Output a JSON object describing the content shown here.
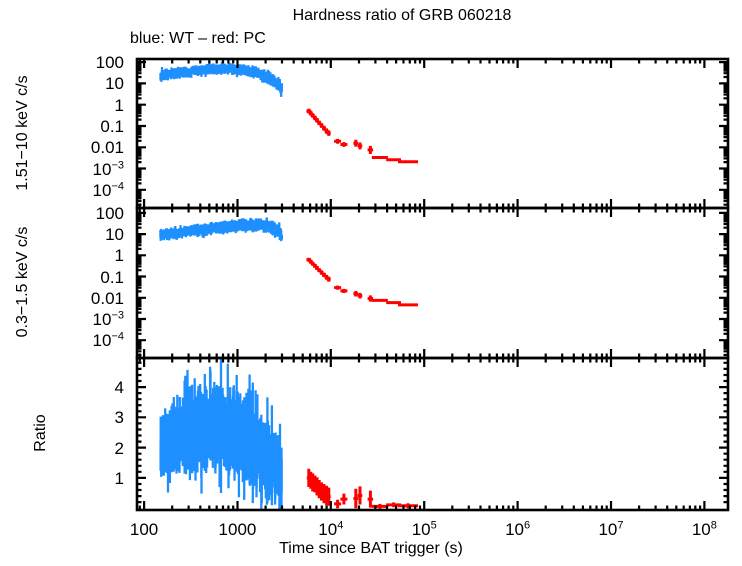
{
  "colors": {
    "wt_blue": "#1E8FFF",
    "pc_red": "#FF0000",
    "axes": "#000000",
    "background": "#FFFFFF"
  },
  "chart_data": {
    "type": "scatter",
    "title": "Hardness ratio of GRB 060218",
    "subtitle": "blue: WT – red: PC",
    "xlabel": "Time since BAT trigger (s)",
    "x_scale": "log",
    "x_range": [
      84,
      179000000
    ],
    "x_ticks": [
      {
        "v": 100,
        "label": "100"
      },
      {
        "v": 1000,
        "label": "1000"
      },
      {
        "v": 10000,
        "label": "10^4"
      },
      {
        "v": 100000,
        "label": "10^5"
      },
      {
        "v": 1000000,
        "label": "10^6"
      },
      {
        "v": 10000000,
        "label": "10^7"
      },
      {
        "v": 100000000,
        "label": "10^8"
      }
    ],
    "legend": [
      {
        "label": "WT",
        "color_key": "wt_blue"
      },
      {
        "label": "PC",
        "color_key": "pc_red"
      }
    ],
    "panels": [
      {
        "name": "hard-band-rate",
        "ylabel": "1.51−10 keV c/s",
        "y_scale": "log",
        "y_range": [
          1.4e-05,
          140
        ],
        "y_ticks": [
          {
            "v": 100,
            "label": "100"
          },
          {
            "v": 10,
            "label": "10"
          },
          {
            "v": 1,
            "label": "1"
          },
          {
            "v": 0.1,
            "label": "0.1"
          },
          {
            "v": 0.01,
            "label": "0.01"
          },
          {
            "v": 0.001,
            "label": "10^−3"
          },
          {
            "v": 0.0001,
            "label": "10^−4"
          }
        ],
        "wt_band_anchors": [
          [
            150,
            24,
            0.26
          ],
          [
            250,
            33,
            0.24
          ],
          [
            400,
            42,
            0.24
          ],
          [
            650,
            47,
            0.25
          ],
          [
            900,
            48,
            0.25
          ],
          [
            1300,
            40,
            0.26
          ],
          [
            1800,
            26,
            0.27
          ],
          [
            2300,
            16,
            0.3
          ],
          [
            2700,
            9,
            0.32
          ],
          [
            2980,
            5.5,
            0.34
          ]
        ],
        "pc_points": [
          [
            5800,
            0.5,
            1.06,
            1.3
          ],
          [
            6100,
            0.4,
            1.05,
            1.3
          ],
          [
            6400,
            0.31,
            1.05,
            1.28
          ],
          [
            6750,
            0.24,
            1.05,
            1.28
          ],
          [
            7100,
            0.185,
            1.05,
            1.28
          ],
          [
            7500,
            0.14,
            1.05,
            1.28
          ],
          [
            7950,
            0.105,
            1.05,
            1.3
          ],
          [
            8450,
            0.078,
            1.05,
            1.3
          ],
          [
            9000,
            0.057,
            1.05,
            1.35
          ],
          [
            9500,
            0.046,
            1.05,
            1.35
          ],
          [
            11800,
            0.019,
            1.09,
            1.3
          ],
          [
            13800,
            0.0135,
            1.09,
            1.3
          ],
          [
            18500,
            0.0155,
            1.06,
            1.45
          ],
          [
            20500,
            0.0115,
            1.06,
            1.45
          ],
          [
            26500,
            0.0075,
            1.07,
            1.55
          ],
          [
            33500,
            0.0033,
            1.22,
            1.12
          ],
          [
            47000,
            0.0026,
            1.2,
            1.12
          ],
          [
            67000,
            0.0021,
            1.28,
            1.15
          ]
        ]
      },
      {
        "name": "soft-band-rate",
        "ylabel": "0.3−1.5 keV c/s",
        "y_scale": "log",
        "y_range": [
          1.45e-05,
          170
        ],
        "y_ticks": [
          {
            "v": 100,
            "label": "100"
          },
          {
            "v": 10,
            "label": "10"
          },
          {
            "v": 1,
            "label": "1"
          },
          {
            "v": 0.1,
            "label": "0.1"
          },
          {
            "v": 0.01,
            "label": "0.01"
          },
          {
            "v": 0.001,
            "label": "10^−3"
          },
          {
            "v": 0.0001,
            "label": "10^−4"
          }
        ],
        "wt_band_anchors": [
          [
            150,
            9,
            0.26
          ],
          [
            250,
            12,
            0.26
          ],
          [
            400,
            16,
            0.27
          ],
          [
            650,
            20,
            0.27
          ],
          [
            900,
            24,
            0.28
          ],
          [
            1300,
            27,
            0.28
          ],
          [
            1800,
            27,
            0.28
          ],
          [
            2300,
            22,
            0.3
          ],
          [
            2700,
            14,
            0.32
          ],
          [
            2980,
            9.5,
            0.34
          ]
        ],
        "pc_points": [
          [
            5800,
            0.62,
            1.06,
            1.25
          ],
          [
            6100,
            0.5,
            1.05,
            1.25
          ],
          [
            6400,
            0.4,
            1.05,
            1.25
          ],
          [
            6750,
            0.32,
            1.05,
            1.25
          ],
          [
            7100,
            0.255,
            1.05,
            1.25
          ],
          [
            7500,
            0.2,
            1.05,
            1.25
          ],
          [
            7950,
            0.155,
            1.05,
            1.28
          ],
          [
            8450,
            0.12,
            1.05,
            1.28
          ],
          [
            9000,
            0.092,
            1.05,
            1.3
          ],
          [
            9500,
            0.075,
            1.05,
            1.3
          ],
          [
            11800,
            0.03,
            1.09,
            1.25
          ],
          [
            13800,
            0.021,
            1.09,
            1.25
          ],
          [
            18500,
            0.0155,
            1.06,
            1.35
          ],
          [
            20500,
            0.0125,
            1.06,
            1.35
          ],
          [
            26500,
            0.0092,
            1.07,
            1.4
          ],
          [
            33500,
            0.0075,
            1.22,
            1.1
          ],
          [
            47000,
            0.0059,
            1.2,
            1.1
          ],
          [
            67000,
            0.0046,
            1.28,
            1.12
          ]
        ]
      },
      {
        "name": "hardness-ratio",
        "ylabel": "Ratio",
        "y_scale": "linear",
        "y_range": [
          -0.06,
          4.96
        ],
        "y_ticks": [
          {
            "v": 4,
            "label": "4"
          },
          {
            "v": 3,
            "label": "3"
          },
          {
            "v": 2,
            "label": "2"
          },
          {
            "v": 1,
            "label": "1"
          }
        ],
        "wt_band_anchors": [
          [
            150,
            2.05,
            0.85
          ],
          [
            230,
            2.35,
            1.0
          ],
          [
            400,
            2.6,
            1.15
          ],
          [
            650,
            2.6,
            1.2
          ],
          [
            950,
            2.45,
            1.2
          ],
          [
            1400,
            2.1,
            1.1
          ],
          [
            1900,
            1.75,
            1.0
          ],
          [
            2400,
            1.4,
            0.95
          ],
          [
            2750,
            1.15,
            0.9
          ],
          [
            2980,
            1.0,
            0.85
          ]
        ],
        "pc_points": [
          [
            5800,
            1.0,
            1.05,
            0.3
          ],
          [
            6100,
            0.92,
            1.05,
            0.28
          ],
          [
            6400,
            0.85,
            1.05,
            0.3
          ],
          [
            6750,
            0.8,
            1.05,
            0.28
          ],
          [
            7100,
            0.72,
            1.05,
            0.3
          ],
          [
            7500,
            0.63,
            1.05,
            0.3
          ],
          [
            7950,
            0.55,
            1.05,
            0.3
          ],
          [
            8450,
            0.48,
            1.05,
            0.32
          ],
          [
            9000,
            0.42,
            1.05,
            0.32
          ],
          [
            9500,
            0.38,
            1.05,
            0.3
          ],
          [
            11800,
            0.14,
            1.09,
            0.14
          ],
          [
            13800,
            0.3,
            1.09,
            0.18
          ],
          [
            18500,
            0.32,
            1.06,
            0.32
          ],
          [
            20500,
            0.42,
            1.06,
            0.3
          ],
          [
            26500,
            0.3,
            1.07,
            0.28
          ],
          [
            33500,
            0.06,
            1.22,
            0.08
          ],
          [
            47000,
            0.11,
            1.2,
            0.08
          ],
          [
            67000,
            0.08,
            1.28,
            0.08
          ]
        ]
      }
    ]
  }
}
